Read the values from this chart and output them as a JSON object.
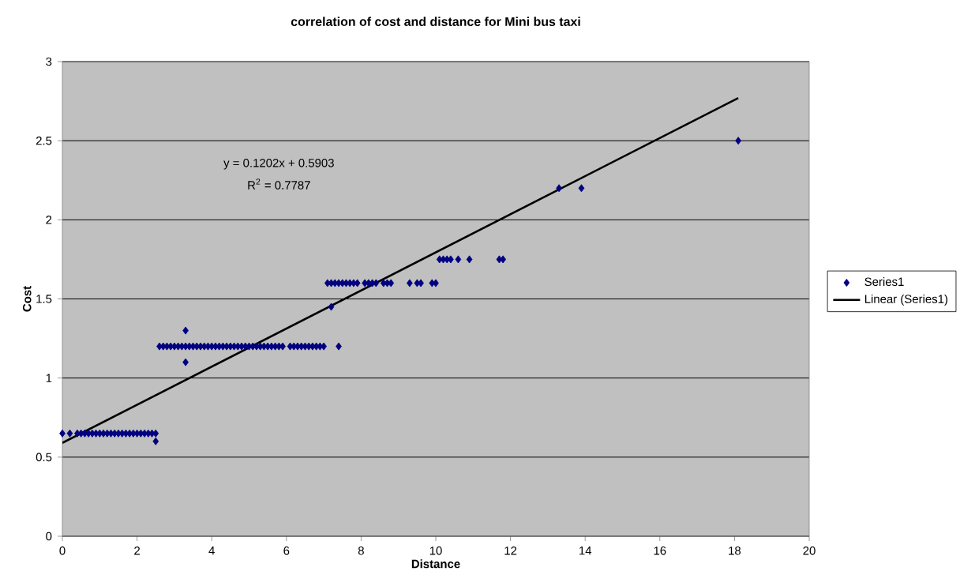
{
  "chart_data": {
    "type": "scatter",
    "title": "correlation of cost and distance for Mini bus taxi",
    "xlabel": "Distance",
    "ylabel": "Cost",
    "xlim": [
      0,
      20
    ],
    "xticks": [
      0,
      2,
      4,
      6,
      8,
      10,
      12,
      14,
      16,
      18,
      20
    ],
    "ylim": [
      0,
      3
    ],
    "yticks": [
      0,
      0.5,
      1,
      1.5,
      2,
      2.5,
      3
    ],
    "grid": "y",
    "legend": "right",
    "annotations": [
      "y = 0.1202x + 0.5903",
      "R$^{2}$ = 0.7787"
    ],
    "series": [
      {
        "name": "Series1",
        "marker": "diamond",
        "color": "#000080",
        "x": [
          0,
          0.2,
          0.4,
          0.5,
          0.6,
          0.7,
          0.8,
          0.9,
          1,
          1.1,
          1.2,
          1.3,
          1.4,
          1.5,
          1.6,
          1.7,
          1.8,
          1.9,
          2,
          2.1,
          2.2,
          2.3,
          2.4,
          2.5,
          2.5,
          2.6,
          2.7,
          2.8,
          2.9,
          3,
          3.1,
          3.2,
          3.3,
          3.4,
          3.5,
          3.6,
          3.7,
          3.8,
          3.9,
          4,
          4.1,
          4.2,
          4.3,
          4.4,
          4.5,
          4.6,
          4.7,
          4.8,
          4.9,
          5,
          5.1,
          5.2,
          5.3,
          5.4,
          5.5,
          5.6,
          5.7,
          5.8,
          5.9,
          3.3,
          3.3,
          6.1,
          6.2,
          6.3,
          6.4,
          6.5,
          6.6,
          6.7,
          6.8,
          6.9,
          7,
          7.4,
          7.2,
          7.1,
          7.2,
          7.3,
          7.4,
          7.5,
          7.6,
          7.7,
          7.8,
          7.9,
          8.1,
          8.2,
          8.3,
          8.4,
          8.6,
          8.7,
          8.8,
          9.3,
          9.5,
          9.6,
          9.9,
          10,
          10.1,
          10.2,
          10.3,
          10.4,
          10.6,
          10.9,
          11.7,
          11.8,
          13.3,
          13.9,
          18.1
        ],
        "values": [
          0.65,
          0.65,
          0.65,
          0.65,
          0.65,
          0.65,
          0.65,
          0.65,
          0.65,
          0.65,
          0.65,
          0.65,
          0.65,
          0.65,
          0.65,
          0.65,
          0.65,
          0.65,
          0.65,
          0.65,
          0.65,
          0.65,
          0.65,
          0.65,
          0.6,
          1.2,
          1.2,
          1.2,
          1.2,
          1.2,
          1.2,
          1.2,
          1.2,
          1.2,
          1.2,
          1.2,
          1.2,
          1.2,
          1.2,
          1.2,
          1.2,
          1.2,
          1.2,
          1.2,
          1.2,
          1.2,
          1.2,
          1.2,
          1.2,
          1.2,
          1.2,
          1.2,
          1.2,
          1.2,
          1.2,
          1.2,
          1.2,
          1.2,
          1.2,
          1.3,
          1.1,
          1.2,
          1.2,
          1.2,
          1.2,
          1.2,
          1.2,
          1.2,
          1.2,
          1.2,
          1.2,
          1.2,
          1.45,
          1.6,
          1.6,
          1.6,
          1.6,
          1.6,
          1.6,
          1.6,
          1.6,
          1.6,
          1.6,
          1.6,
          1.6,
          1.6,
          1.6,
          1.6,
          1.6,
          1.6,
          1.6,
          1.6,
          1.6,
          1.6,
          1.75,
          1.75,
          1.75,
          1.75,
          1.75,
          1.75,
          1.75,
          1.75,
          2.2,
          2.2,
          2.5
        ]
      },
      {
        "name": "Linear (Series1)",
        "type": "line",
        "color": "#000000",
        "x": [
          0,
          18.1
        ],
        "values": [
          0.59,
          2.77
        ]
      }
    ]
  }
}
